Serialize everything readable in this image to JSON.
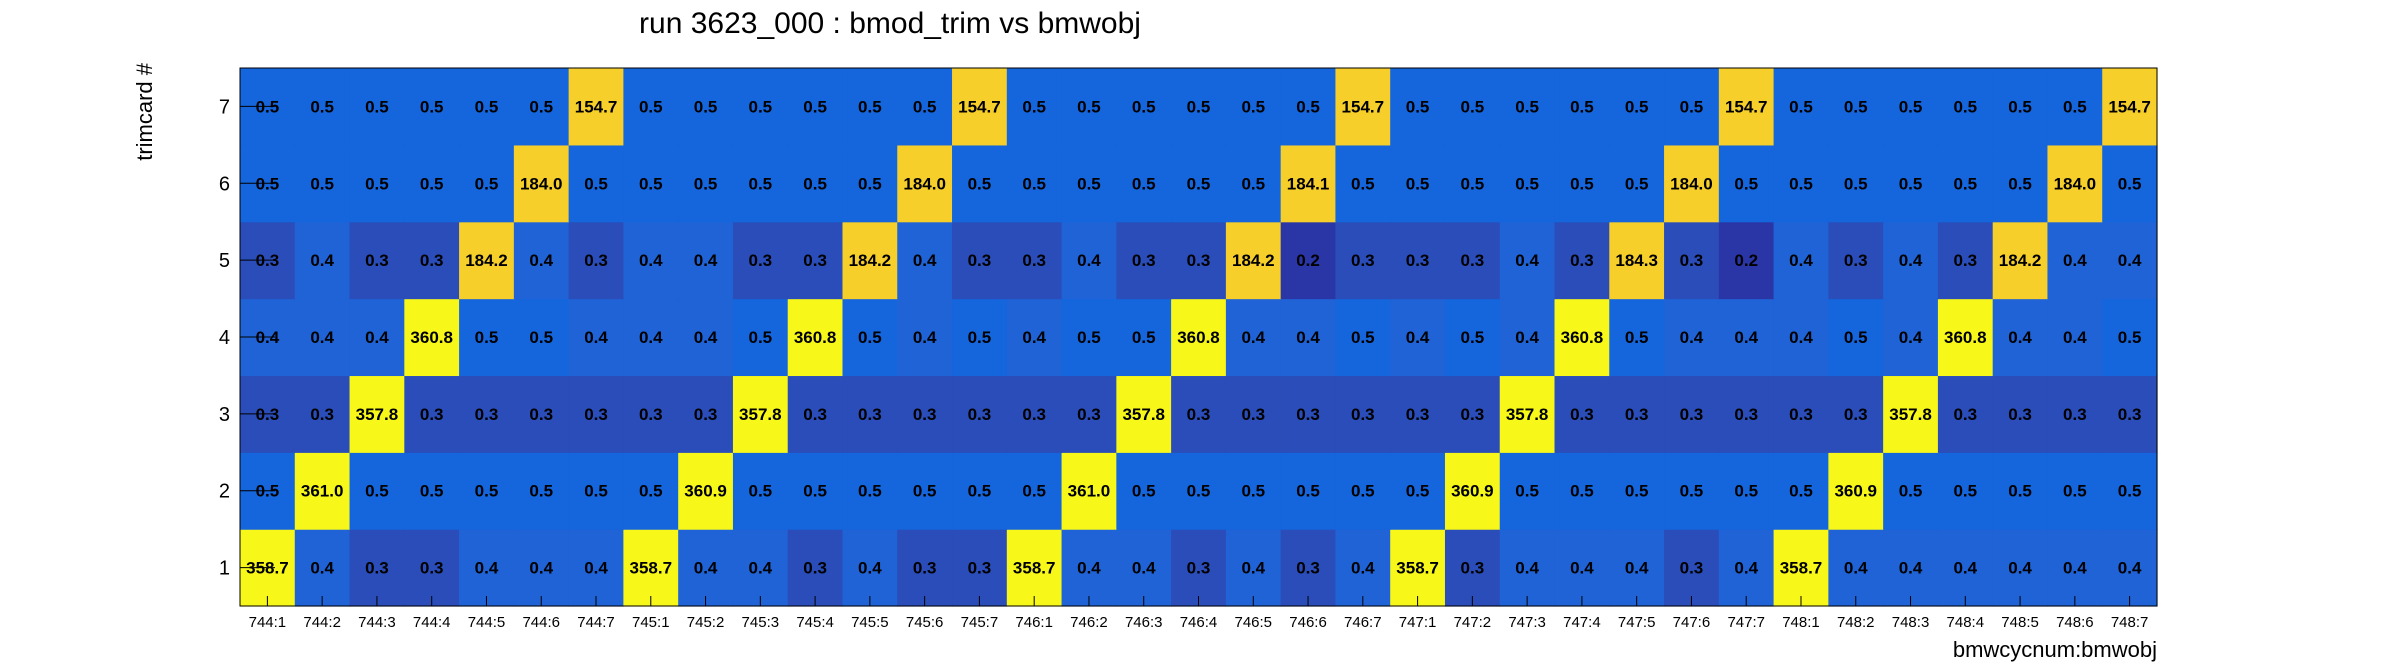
{
  "chart_data": {
    "type": "heatmap",
    "title": "run 3623_000 : bmod_trim vs bmwobj",
    "xlabel": "bmwcycnum:bmwobj",
    "ylabel": "trimcard #",
    "x_categories": [
      "744:1",
      "744:2",
      "744:3",
      "744:4",
      "744:5",
      "744:6",
      "744:7",
      "745:1",
      "745:2",
      "745:3",
      "745:4",
      "745:5",
      "745:6",
      "745:7",
      "746:1",
      "746:2",
      "746:3",
      "746:4",
      "746:5",
      "746:6",
      "746:7",
      "747:1",
      "747:2",
      "747:3",
      "747:4",
      "747:5",
      "747:6",
      "747:7",
      "748:1",
      "748:2",
      "748:3",
      "748:4",
      "748:5",
      "748:6",
      "748:7"
    ],
    "y_categories": [
      "1",
      "2",
      "3",
      "4",
      "5",
      "6",
      "7"
    ],
    "values": [
      [
        "358.7",
        "0.4",
        "0.3",
        "0.3",
        "0.4",
        "0.4",
        "0.4",
        "358.7",
        "0.4",
        "0.4",
        "0.3",
        "0.4",
        "0.3",
        "0.3",
        "358.7",
        "0.4",
        "0.4",
        "0.3",
        "0.4",
        "0.3",
        "0.4",
        "358.7",
        "0.3",
        "0.4",
        "0.4",
        "0.4",
        "0.3",
        "0.4",
        "358.7",
        "0.4",
        "0.4",
        "0.4",
        "0.4",
        "0.4",
        "0.4"
      ],
      [
        "0.5",
        "361.0",
        "0.5",
        "0.5",
        "0.5",
        "0.5",
        "0.5",
        "0.5",
        "360.9",
        "0.5",
        "0.5",
        "0.5",
        "0.5",
        "0.5",
        "0.5",
        "361.0",
        "0.5",
        "0.5",
        "0.5",
        "0.5",
        "0.5",
        "0.5",
        "360.9",
        "0.5",
        "0.5",
        "0.5",
        "0.5",
        "0.5",
        "0.5",
        "360.9",
        "0.5",
        "0.5",
        "0.5",
        "0.5",
        "0.5"
      ],
      [
        "0.3",
        "0.3",
        "357.8",
        "0.3",
        "0.3",
        "0.3",
        "0.3",
        "0.3",
        "0.3",
        "357.8",
        "0.3",
        "0.3",
        "0.3",
        "0.3",
        "0.3",
        "0.3",
        "357.8",
        "0.3",
        "0.3",
        "0.3",
        "0.3",
        "0.3",
        "0.3",
        "357.8",
        "0.3",
        "0.3",
        "0.3",
        "0.3",
        "0.3",
        "0.3",
        "357.8",
        "0.3",
        "0.3",
        "0.3",
        "0.3"
      ],
      [
        "0.4",
        "0.4",
        "0.4",
        "360.8",
        "0.5",
        "0.5",
        "0.4",
        "0.4",
        "0.4",
        "0.5",
        "360.8",
        "0.5",
        "0.4",
        "0.5",
        "0.4",
        "0.5",
        "0.5",
        "360.8",
        "0.4",
        "0.4",
        "0.5",
        "0.4",
        "0.5",
        "0.4",
        "360.8",
        "0.5",
        "0.4",
        "0.4",
        "0.4",
        "0.5",
        "0.4",
        "360.8",
        "0.4",
        "0.4",
        "0.5"
      ],
      [
        "0.3",
        "0.4",
        "0.3",
        "0.3",
        "184.2",
        "0.4",
        "0.3",
        "0.4",
        "0.4",
        "0.3",
        "0.3",
        "184.2",
        "0.4",
        "0.3",
        "0.3",
        "0.4",
        "0.3",
        "0.3",
        "184.2",
        "0.2",
        "0.3",
        "0.3",
        "0.3",
        "0.4",
        "0.3",
        "184.3",
        "0.3",
        "0.2",
        "0.4",
        "0.3",
        "0.4",
        "0.3",
        "184.2",
        "0.4",
        "0.4"
      ],
      [
        "0.5",
        "0.5",
        "0.5",
        "0.5",
        "0.5",
        "184.0",
        "0.5",
        "0.5",
        "0.5",
        "0.5",
        "0.5",
        "0.5",
        "184.0",
        "0.5",
        "0.5",
        "0.5",
        "0.5",
        "0.5",
        "0.5",
        "184.1",
        "0.5",
        "0.5",
        "0.5",
        "0.5",
        "0.5",
        "0.5",
        "184.0",
        "0.5",
        "0.5",
        "0.5",
        "0.5",
        "0.5",
        "0.5",
        "184.0",
        "0.5"
      ],
      [
        "0.5",
        "0.5",
        "0.5",
        "0.5",
        "0.5",
        "0.5",
        "154.7",
        "0.5",
        "0.5",
        "0.5",
        "0.5",
        "0.5",
        "0.5",
        "154.7",
        "0.5",
        "0.5",
        "0.5",
        "0.5",
        "0.5",
        "0.5",
        "154.7",
        "0.5",
        "0.5",
        "0.5",
        "0.5",
        "0.5",
        "0.5",
        "154.7",
        "0.5",
        "0.5",
        "0.5",
        "0.5",
        "0.5",
        "0.5",
        "154.7"
      ]
    ],
    "colors": {
      "very_low": "#2a36a6",
      "low": "#2a4db9",
      "mid_low": "#1f63d6",
      "mid": "#1565dc",
      "high_mid": "#f7cf2a",
      "high": "#f7f71a"
    },
    "grid": false,
    "legend": "none"
  }
}
